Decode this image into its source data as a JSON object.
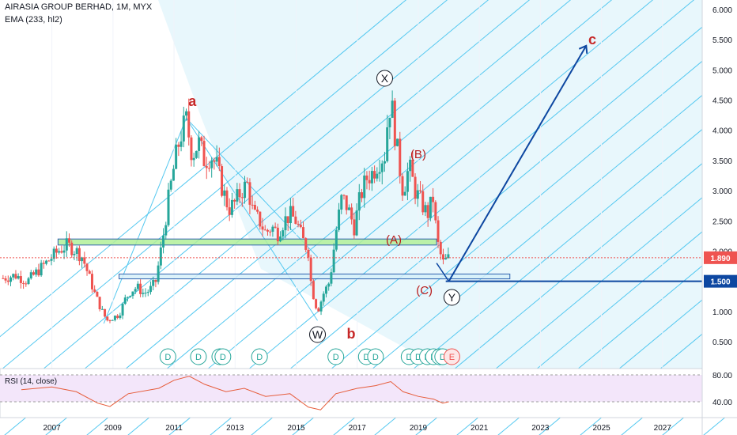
{
  "header": {
    "symbol_line": "AIRASIA GROUP BERHAD, 1M, MYX",
    "indicator_line": "EMA (233, hl2)"
  },
  "colors": {
    "up": "#26a69a",
    "down": "#ef5350",
    "fan": "#54c8f0",
    "fan_fill": "#e6f6fc",
    "green_zone": "#b2f09a",
    "blue_line": "#0d47a1",
    "wave_red": "#c62828",
    "wave_brown": "#b71c1c",
    "rsi_bg": "#f3e6fa",
    "rsi_line": "#e65c3a"
  },
  "chart_data": [
    {
      "type": "candlestick",
      "title": "AIRASIA GROUP BERHAD, 1M, MYX",
      "x_ticks": [
        "2007",
        "2009",
        "2011",
        "2013",
        "2015",
        "2017",
        "2019",
        "2021",
        "2023",
        "2025",
        "2027"
      ],
      "y_ticks": [
        "6.000",
        "5.500",
        "5.000",
        "4.500",
        "4.000",
        "3.500",
        "3.000",
        "2.500",
        "2.000",
        "1.500",
        "1.000",
        "0.500"
      ],
      "ylim": [
        0.3,
        6.1
      ],
      "xlim": [
        2005.3,
        2028.3
      ],
      "series": [
        {
          "kind": "close_path",
          "points": [
            [
              2005.4,
              1.55
            ],
            [
              2005.8,
              1.6
            ],
            [
              2006.2,
              1.5
            ],
            [
              2006.6,
              1.7
            ],
            [
              2006.9,
              1.85
            ],
            [
              2007.2,
              2.0
            ],
            [
              2007.5,
              2.1
            ],
            [
              2007.8,
              2.0
            ],
            [
              2008.0,
              1.9
            ],
            [
              2008.2,
              1.6
            ],
            [
              2008.4,
              1.3
            ],
            [
              2008.6,
              1.05
            ],
            [
              2008.8,
              0.85
            ],
            [
              2009.0,
              0.9
            ],
            [
              2009.2,
              0.95
            ],
            [
              2009.4,
              1.2
            ],
            [
              2009.6,
              1.35
            ],
            [
              2009.8,
              1.4
            ],
            [
              2010.0,
              1.3
            ],
            [
              2010.2,
              1.35
            ],
            [
              2010.4,
              1.5
            ],
            [
              2010.6,
              2.1
            ],
            [
              2010.8,
              2.8
            ],
            [
              2011.0,
              3.4
            ],
            [
              2011.2,
              3.9
            ],
            [
              2011.4,
              4.15
            ],
            [
              2011.6,
              3.6
            ],
            [
              2011.8,
              3.8
            ],
            [
              2012.0,
              3.5
            ],
            [
              2012.2,
              3.6
            ],
            [
              2012.4,
              3.4
            ],
            [
              2012.6,
              3.0
            ],
            [
              2012.8,
              2.7
            ],
            [
              2013.0,
              2.8
            ],
            [
              2013.2,
              3.0
            ],
            [
              2013.4,
              3.1
            ],
            [
              2013.6,
              2.6
            ],
            [
              2013.8,
              2.5
            ],
            [
              2014.0,
              2.3
            ],
            [
              2014.2,
              2.4
            ],
            [
              2014.4,
              2.3
            ],
            [
              2014.6,
              2.5
            ],
            [
              2014.8,
              2.6
            ],
            [
              2015.0,
              2.5
            ],
            [
              2015.2,
              2.2
            ],
            [
              2015.4,
              2.0
            ],
            [
              2015.5,
              1.4
            ],
            [
              2015.7,
              1.0
            ],
            [
              2015.9,
              1.3
            ],
            [
              2016.1,
              1.5
            ],
            [
              2016.3,
              2.3
            ],
            [
              2016.5,
              2.9
            ],
            [
              2016.7,
              2.7
            ],
            [
              2016.9,
              2.4
            ],
            [
              2017.1,
              2.9
            ],
            [
              2017.3,
              3.2
            ],
            [
              2017.5,
              3.3
            ],
            [
              2017.7,
              3.5
            ],
            [
              2017.9,
              3.6
            ],
            [
              2018.0,
              4.2
            ],
            [
              2018.1,
              4.5
            ],
            [
              2018.3,
              3.7
            ],
            [
              2018.5,
              3.0
            ],
            [
              2018.7,
              3.4
            ],
            [
              2018.9,
              3.0
            ],
            [
              2019.1,
              2.8
            ],
            [
              2019.3,
              2.6
            ],
            [
              2019.5,
              2.9
            ],
            [
              2019.6,
              2.2
            ],
            [
              2019.8,
              1.8
            ],
            [
              2020.0,
              1.89
            ]
          ]
        }
      ],
      "last_price": "1.890",
      "level_label": "1.500",
      "levels": [
        1.89,
        1.5
      ],
      "zones": [
        {
          "from": 2.1,
          "to": 2.2,
          "x": [
            2007.2,
            2019.6
          ]
        },
        {
          "from": 1.54,
          "to": 1.62,
          "x": [
            2009.2,
            2022.0
          ]
        }
      ],
      "projection": {
        "from": [
          2020.0,
          1.5
        ],
        "to": [
          2024.5,
          5.4
        ]
      },
      "wave_labels": {
        "a": "a",
        "b": "b",
        "c": "c",
        "X": "X",
        "W": "W",
        "Y": "Y",
        "A": "(A)",
        "B": "(B)",
        "C": "(C)"
      },
      "dividend_markers": [
        "D",
        "D",
        "D",
        "D",
        "D",
        "D",
        "D",
        "D",
        "D",
        "D",
        "D",
        "D",
        "D",
        "D"
      ],
      "earnings_marker": "E"
    },
    {
      "type": "line",
      "title": "RSI (14, close)",
      "y_ticks": [
        "80.00",
        "40.00"
      ],
      "ylim": [
        20,
        90
      ],
      "series": [
        {
          "name": "RSI (14, close)",
          "points": [
            [
              2006.0,
              58
            ],
            [
              2007.0,
              62
            ],
            [
              2007.8,
              55
            ],
            [
              2008.5,
              38
            ],
            [
              2008.9,
              33
            ],
            [
              2009.5,
              52
            ],
            [
              2010.5,
              60
            ],
            [
              2011.0,
              72
            ],
            [
              2011.5,
              78
            ],
            [
              2012.0,
              66
            ],
            [
              2012.7,
              55
            ],
            [
              2013.3,
              60
            ],
            [
              2014.0,
              48
            ],
            [
              2014.8,
              52
            ],
            [
              2015.4,
              32
            ],
            [
              2015.8,
              28
            ],
            [
              2016.3,
              52
            ],
            [
              2017.0,
              60
            ],
            [
              2017.6,
              64
            ],
            [
              2018.1,
              70
            ],
            [
              2018.5,
              55
            ],
            [
              2019.0,
              48
            ],
            [
              2019.5,
              44
            ],
            [
              2019.8,
              38
            ],
            [
              2020.0,
              40
            ]
          ]
        }
      ]
    }
  ]
}
